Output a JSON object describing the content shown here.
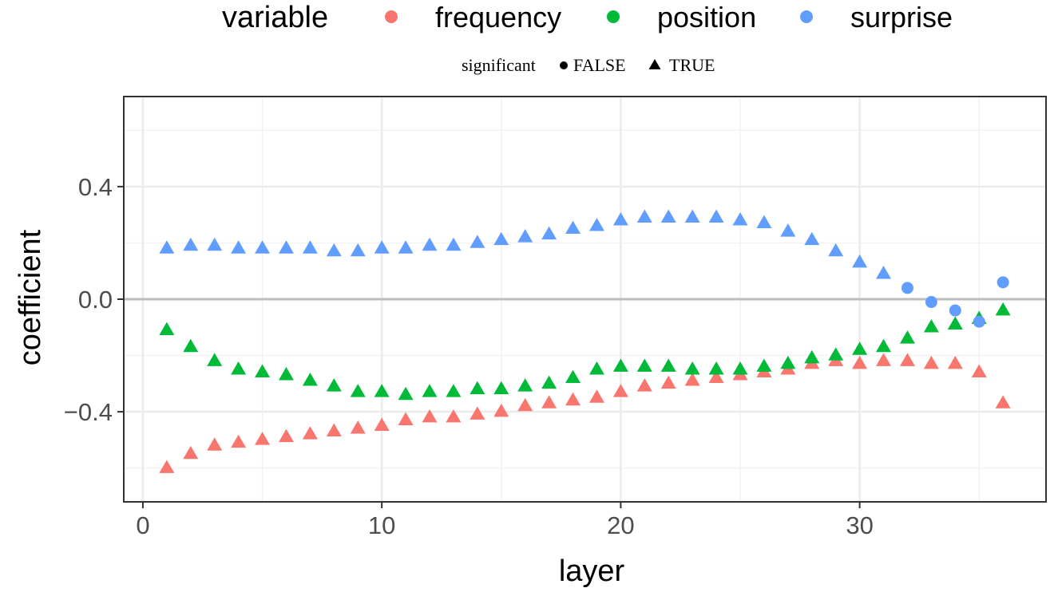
{
  "chart_data": {
    "type": "scatter",
    "xlabel": "layer",
    "ylabel": "coefficient",
    "xlim": [
      -0.8,
      37.8
    ],
    "ylim": [
      -0.72,
      0.72
    ],
    "x_ticks": [
      0,
      10,
      20,
      30
    ],
    "x_tick_labels": [
      "0",
      "10",
      "20",
      "30"
    ],
    "y_ticks": [
      0.4,
      0.0,
      -0.4
    ],
    "y_tick_labels": [
      "0.4",
      "0.0",
      "−0.4"
    ],
    "x_minor_ticks": [
      5,
      15,
      25,
      35
    ],
    "y_minor_ticks": [
      0.6,
      0.2,
      -0.2,
      -0.6
    ],
    "grid": true,
    "reference_line_y": 0,
    "legend": {
      "position": "top",
      "color_title": "variable",
      "shape_title": "significant",
      "shape_entries": [
        {
          "label": "FALSE",
          "shape": "circle"
        },
        {
          "label": "TRUE",
          "shape": "triangle"
        }
      ]
    },
    "series": [
      {
        "name": "frequency",
        "color": "#F8766D",
        "x": [
          1,
          2,
          3,
          4,
          5,
          6,
          7,
          8,
          9,
          10,
          11,
          12,
          13,
          14,
          15,
          16,
          17,
          18,
          19,
          20,
          21,
          22,
          23,
          24,
          25,
          26,
          27,
          28,
          29,
          30,
          31,
          32,
          33,
          34,
          35,
          36
        ],
        "y": [
          -0.6,
          -0.55,
          -0.52,
          -0.51,
          -0.5,
          -0.49,
          -0.48,
          -0.47,
          -0.46,
          -0.45,
          -0.43,
          -0.42,
          -0.42,
          -0.41,
          -0.4,
          -0.38,
          -0.37,
          -0.36,
          -0.35,
          -0.33,
          -0.31,
          -0.3,
          -0.29,
          -0.28,
          -0.27,
          -0.26,
          -0.25,
          -0.23,
          -0.22,
          -0.23,
          -0.22,
          -0.22,
          -0.23,
          -0.23,
          -0.26,
          -0.37
        ],
        "significant": [
          true,
          true,
          true,
          true,
          true,
          true,
          true,
          true,
          true,
          true,
          true,
          true,
          true,
          true,
          true,
          true,
          true,
          true,
          true,
          true,
          true,
          true,
          true,
          true,
          true,
          true,
          true,
          true,
          true,
          true,
          true,
          true,
          true,
          true,
          true,
          true
        ]
      },
      {
        "name": "position",
        "color": "#00BA38",
        "x": [
          1,
          2,
          3,
          4,
          5,
          6,
          7,
          8,
          9,
          10,
          11,
          12,
          13,
          14,
          15,
          16,
          17,
          18,
          19,
          20,
          21,
          22,
          23,
          24,
          25,
          26,
          27,
          28,
          29,
          30,
          31,
          32,
          33,
          34,
          35,
          36
        ],
        "y": [
          -0.11,
          -0.17,
          -0.22,
          -0.25,
          -0.26,
          -0.27,
          -0.29,
          -0.31,
          -0.33,
          -0.33,
          -0.34,
          -0.33,
          -0.33,
          -0.32,
          -0.32,
          -0.31,
          -0.3,
          -0.28,
          -0.25,
          -0.24,
          -0.24,
          -0.24,
          -0.25,
          -0.25,
          -0.25,
          -0.24,
          -0.23,
          -0.21,
          -0.2,
          -0.18,
          -0.17,
          -0.14,
          -0.1,
          -0.09,
          -0.07,
          -0.04
        ],
        "significant": [
          true,
          true,
          true,
          true,
          true,
          true,
          true,
          true,
          true,
          true,
          true,
          true,
          true,
          true,
          true,
          true,
          true,
          true,
          true,
          true,
          true,
          true,
          true,
          true,
          true,
          true,
          true,
          true,
          true,
          true,
          true,
          true,
          true,
          true,
          true,
          true
        ]
      },
      {
        "name": "surprise",
        "color": "#619CFF",
        "x": [
          1,
          2,
          3,
          4,
          5,
          6,
          7,
          8,
          9,
          10,
          11,
          12,
          13,
          14,
          15,
          16,
          17,
          18,
          19,
          20,
          21,
          22,
          23,
          24,
          25,
          26,
          27,
          28,
          29,
          30,
          31,
          32,
          33,
          34,
          35,
          36
        ],
        "y": [
          0.18,
          0.19,
          0.19,
          0.18,
          0.18,
          0.18,
          0.18,
          0.17,
          0.17,
          0.18,
          0.18,
          0.19,
          0.19,
          0.2,
          0.21,
          0.22,
          0.23,
          0.25,
          0.26,
          0.28,
          0.29,
          0.29,
          0.29,
          0.29,
          0.28,
          0.27,
          0.24,
          0.21,
          0.17,
          0.13,
          0.09,
          0.04,
          -0.01,
          -0.04,
          -0.08,
          0.06
        ],
        "significant": [
          true,
          true,
          true,
          true,
          true,
          true,
          true,
          true,
          true,
          true,
          true,
          true,
          true,
          true,
          true,
          true,
          true,
          true,
          true,
          true,
          true,
          true,
          true,
          true,
          true,
          true,
          true,
          true,
          true,
          true,
          true,
          false,
          false,
          false,
          false,
          false
        ]
      }
    ]
  }
}
